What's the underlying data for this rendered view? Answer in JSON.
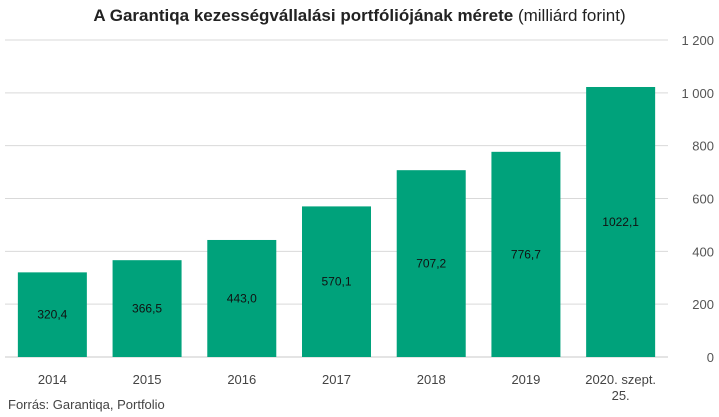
{
  "chart_data": {
    "type": "bar",
    "title": "A Garantiqa kezességvállalási portfóliójának mérete",
    "subtitle": "(milliárd forint)",
    "categories": [
      "2014",
      "2015",
      "2016",
      "2017",
      "2018",
      "2019",
      "2020. szept. 25."
    ],
    "category_lines": [
      [
        "2014"
      ],
      [
        "2015"
      ],
      [
        "2016"
      ],
      [
        "2017"
      ],
      [
        "2018"
      ],
      [
        "2019"
      ],
      [
        "2020. szept.",
        "25."
      ]
    ],
    "values": [
      320.4,
      366.5,
      443.0,
      570.1,
      707.2,
      776.7,
      1022.1
    ],
    "data_labels": [
      "320,4",
      "366,5",
      "443,0",
      "570,1",
      "707,2",
      "776,7",
      "1022,1"
    ],
    "ylim": [
      0,
      1200
    ],
    "yticks": [
      0,
      200,
      400,
      600,
      800,
      1000,
      1200
    ],
    "ytick_labels": [
      "0",
      "200",
      "400",
      "600",
      "800",
      "1 000",
      "1 200"
    ],
    "y_axis_position": "right",
    "grid": true,
    "xlabel": "",
    "ylabel": ""
  },
  "source": "Forrás: Garantiqa, Portfolio",
  "colors": {
    "bar": "#00a27b",
    "grid": "#d9d9d9"
  }
}
